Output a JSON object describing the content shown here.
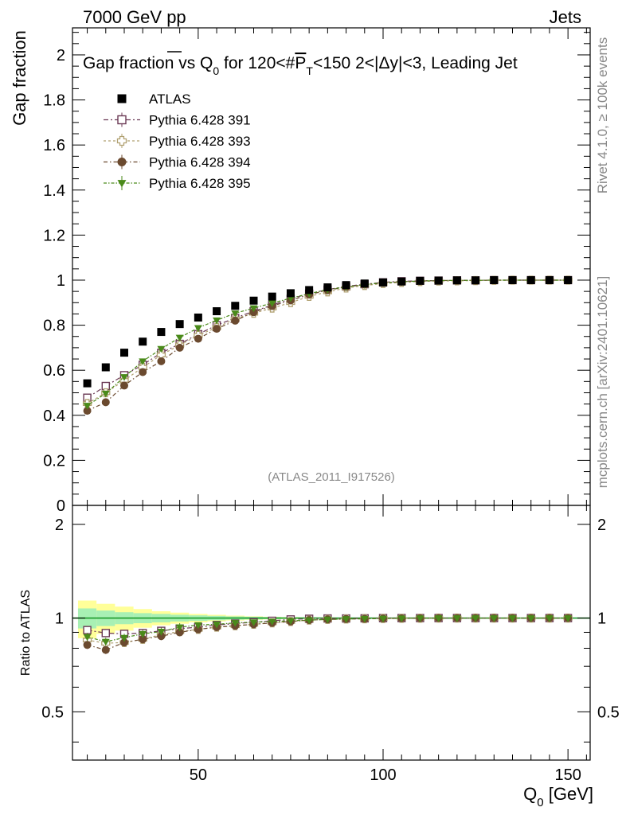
{
  "header": {
    "left": "7000 GeV pp",
    "right": "Jets"
  },
  "side_text": {
    "rivet": "Rivet 4.1.0, ≥ 100k events",
    "mcplots": "mcplots.cern.ch [arXiv:2401.10621]"
  },
  "chart_data": {
    "type": "scatter",
    "title": "Gap fraction vs Q0 for 120<#PT<150  2<|Δy|<3, Leading Jet",
    "title_parts": {
      "a": "Gap fraction vs Q",
      "a_sub": "0",
      "b": " for 120<#",
      "pbar": "P",
      "pbar_sub": "T",
      "c": "<150  2<|Δy|<3, Leading Jet"
    },
    "analysis_label": "(ATLAS_2011_I917526)",
    "ylabel": "Gap fraction",
    "ratio_ylabel": "Ratio to ATLAS",
    "xlabel": "Q0 [GeV]",
    "xlabel_parts": {
      "q": "Q",
      "sub": "0",
      "rest": " [GeV]"
    },
    "xlim": [
      16,
      156
    ],
    "ylim": [
      0,
      2.12
    ],
    "ratio_ylim": [
      0.35,
      2.3
    ],
    "x_ticks": [
      50,
      100,
      150
    ],
    "y_ticks": [
      0,
      0.2,
      0.4,
      0.6,
      0.8,
      1,
      1.2,
      1.4,
      1.6,
      1.8,
      2
    ],
    "y_tick_labels": [
      "0",
      "0.2",
      "0.4",
      "0.6",
      "0.8",
      "1",
      "1.2",
      "1.4",
      "1.6",
      "1.8",
      "2"
    ],
    "ratio_ticks": [
      0.5,
      1,
      2
    ],
    "ratio_tick_labels": [
      "0.5",
      "1",
      "2"
    ],
    "x": [
      20,
      25,
      30,
      35,
      40,
      45,
      50,
      55,
      60,
      65,
      70,
      75,
      80,
      85,
      90,
      95,
      100,
      105,
      110,
      115,
      120,
      125,
      130,
      135,
      140,
      145,
      150
    ],
    "reference": {
      "name": "ATLAS",
      "color": "#000000",
      "values": [
        0.542,
        0.613,
        0.678,
        0.727,
        0.77,
        0.805,
        0.834,
        0.862,
        0.886,
        0.909,
        0.927,
        0.942,
        0.956,
        0.968,
        0.978,
        0.985,
        0.99,
        0.994,
        0.997,
        0.998,
        0.999,
        0.999,
        1.0,
        1.0,
        1.0,
        1.0,
        1.0
      ],
      "band_inner": [
        0.04,
        0.035,
        0.03,
        0.027,
        0.024,
        0.02,
        0.017,
        0.014,
        0.011,
        0.009,
        0.007,
        0.005,
        0.004,
        0.003,
        0.002,
        0.0,
        0.0,
        0.0,
        0.0,
        0.0,
        0.0,
        0.0,
        0.0,
        0.0,
        0.0,
        0.0,
        0.0
      ],
      "band_outer": [
        0.075,
        0.068,
        0.06,
        0.05,
        0.04,
        0.033,
        0.026,
        0.021,
        0.016,
        0.012,
        0.009,
        0.007,
        0.005,
        0.004,
        0.003,
        0.0,
        0.0,
        0.0,
        0.0,
        0.0,
        0.0,
        0.0,
        0.0,
        0.0,
        0.0,
        0.0,
        0.0
      ]
    },
    "series": [
      {
        "name": "Pythia 6.428 391",
        "color": "#6b3a55",
        "marker": "open-square",
        "dash": "6,3,2,3",
        "values": [
          0.478,
          0.53,
          0.578,
          0.624,
          0.677,
          0.717,
          0.76,
          0.8,
          0.832,
          0.862,
          0.889,
          0.917,
          0.94,
          0.958,
          0.972,
          0.982,
          0.99,
          0.995,
          0.997,
          0.998,
          0.999,
          0.999,
          1.0,
          1.0,
          1.0,
          1.0,
          1.0
        ],
        "ratio": [
          0.915,
          0.895,
          0.89,
          0.895,
          0.91,
          0.925,
          0.935,
          0.95,
          0.96,
          0.97,
          0.98,
          0.99,
          0.995,
          0.997,
          0.997,
          0.998,
          1.0,
          1.0,
          1.0,
          1.0,
          1.0,
          1.0,
          1.0,
          1.0,
          1.0,
          1.0,
          1.0
        ]
      },
      {
        "name": "Pythia 6.428 393",
        "color": "#b0a070",
        "marker": "open-cross",
        "dash": "3,3",
        "values": [
          0.452,
          0.5,
          0.555,
          0.613,
          0.668,
          0.712,
          0.755,
          0.79,
          0.828,
          0.853,
          0.876,
          0.9,
          0.928,
          0.948,
          0.965,
          0.976,
          0.985,
          0.99,
          0.994,
          0.996,
          0.997,
          0.998,
          0.999,
          1.0,
          1.0,
          1.0,
          1.0
        ],
        "ratio": [
          0.85,
          0.83,
          0.835,
          0.855,
          0.885,
          0.905,
          0.92,
          0.935,
          0.945,
          0.955,
          0.965,
          0.975,
          0.985,
          0.99,
          0.993,
          0.995,
          0.997,
          0.998,
          0.999,
          1.0,
          1.0,
          1.0,
          1.0,
          1.0,
          1.0,
          1.0,
          1.0
        ]
      },
      {
        "name": "Pythia 6.428 394",
        "color": "#6b4a2f",
        "marker": "filled-circle",
        "dash": "5,3,1.5,3",
        "values": [
          0.42,
          0.458,
          0.532,
          0.592,
          0.64,
          0.7,
          0.74,
          0.784,
          0.82,
          0.858,
          0.885,
          0.91,
          0.936,
          0.955,
          0.97,
          0.98,
          0.988,
          0.993,
          0.996,
          0.998,
          0.999,
          0.999,
          1.0,
          1.0,
          1.0,
          1.0,
          1.0
        ],
        "ratio": [
          0.82,
          0.79,
          0.835,
          0.855,
          0.875,
          0.9,
          0.92,
          0.935,
          0.945,
          0.955,
          0.965,
          0.975,
          0.985,
          0.99,
          0.993,
          0.995,
          0.997,
          0.998,
          0.999,
          1.0,
          1.0,
          1.0,
          1.0,
          1.0,
          1.0,
          1.0,
          1.0
        ]
      },
      {
        "name": "Pythia 6.428 395",
        "color": "#4a8a1a",
        "marker": "filled-triangle-down",
        "dash": "4,2,1.5,2",
        "values": [
          0.443,
          0.497,
          0.57,
          0.64,
          0.695,
          0.745,
          0.788,
          0.822,
          0.853,
          0.876,
          0.898,
          0.92,
          0.94,
          0.958,
          0.97,
          0.98,
          0.988,
          0.993,
          0.996,
          0.998,
          0.999,
          0.999,
          1.0,
          1.0,
          1.0,
          1.0,
          1.0
        ],
        "ratio": [
          0.87,
          0.84,
          0.865,
          0.89,
          0.905,
          0.935,
          0.95,
          0.955,
          0.965,
          0.97,
          0.975,
          0.98,
          0.985,
          0.99,
          0.993,
          0.995,
          0.997,
          0.998,
          0.999,
          1.0,
          1.0,
          1.0,
          1.0,
          1.0,
          1.0,
          1.0,
          1.0
        ]
      }
    ]
  }
}
